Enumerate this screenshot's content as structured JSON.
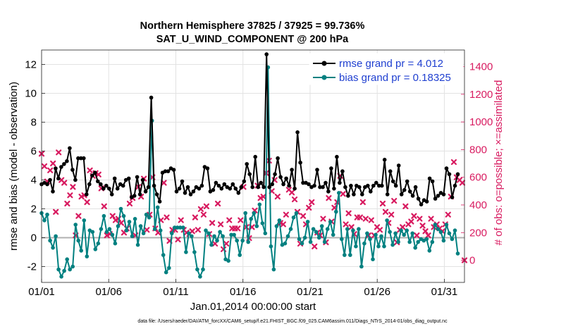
{
  "chart_data": {
    "type": "line",
    "title": "Northern Hemisphere 37825 / 37925 = 99.736%",
    "subtitle": "SAT_U_WIND_COMPONENT @ 200 hPa",
    "xlabel": "Jan.01,2014 00:00:00 start",
    "ylabel": "rmse and bias (model - observation)",
    "y2label": "# of obs: o=possible; ×=assimilated",
    "footer": "data file: /Users/raeder/DAI/ATM_forcXX/CAM6_setup/f.e21.FHIST_BGC.f09_025.CAM6assim.011/Diags_NTrS_2014-01/obs_diag_output.nc",
    "xlim": [
      0,
      31.5
    ],
    "ylim": [
      -3.1,
      13
    ],
    "y2lim": [
      -160,
      1520
    ],
    "x_ticks": [
      0,
      5,
      10,
      15,
      20,
      25,
      30
    ],
    "x_tick_labels": [
      "01/01",
      "01/06",
      "01/11",
      "01/16",
      "01/21",
      "01/26",
      "01/31"
    ],
    "y_ticks": [
      -2,
      0,
      2,
      4,
      6,
      8,
      10,
      12
    ],
    "y_tick_labels": [
      "-2",
      "0",
      "2",
      "4",
      "6",
      "8",
      "10",
      "12"
    ],
    "y2_ticks": [
      0,
      200,
      400,
      600,
      800,
      1000,
      1200,
      1400
    ],
    "y2_tick_labels": [
      "0",
      "200",
      "400",
      "600",
      "800",
      "1000",
      "1200",
      "1400"
    ],
    "grid": true,
    "legend_position": "top-right",
    "colors": {
      "rmse": "#000000",
      "bias": "#008080",
      "obs": "#d81b60",
      "zero": "#b0b0b0",
      "legend_text": "#1f3fd0"
    },
    "series": [
      {
        "name": "rmse grand pr = 4.012",
        "axis": "left",
        "values": [
          3.7,
          3.8,
          3.7,
          4.0,
          3.2,
          4.8,
          4.1,
          4.9,
          5.1,
          5.3,
          6.2,
          4.7,
          4.0,
          5.5,
          5.5,
          5.5,
          3.0,
          3.7,
          4.3,
          4.5,
          3.9,
          3.7,
          3.4,
          3.6,
          3.4,
          3.0,
          4.1,
          3.4,
          3.7,
          3.6,
          4.0,
          4.1,
          2.8,
          2.9,
          4.2,
          3.0,
          4.0,
          3.2,
          3.5,
          9.7,
          3.6,
          3.0,
          2.5,
          4.5,
          4.6,
          4.6,
          4.8,
          4.7,
          3.2,
          3.4,
          3.9,
          3.1,
          3.5,
          3.0,
          3.2,
          3.5,
          3.4,
          3.6,
          4.9,
          4.8,
          3.2,
          3.3,
          3.8,
          3.6,
          3.4,
          3.7,
          3.5,
          3.4,
          3.7,
          3.4,
          3.1,
          3.5,
          3.9,
          5.1,
          4.4,
          3.5,
          5.6,
          3.5,
          3.8,
          3.5,
          12.7,
          3.5,
          3.7,
          4.4,
          5.5,
          4.2,
          3.7,
          4.1,
          3.6,
          4.7,
          3.4,
          7.3,
          5.2,
          3.8,
          3.8,
          3.7,
          3.5,
          3.6,
          4.7,
          3.5,
          3.5,
          3.8,
          3.2,
          4.8,
          3.4,
          5.6,
          3.8,
          4.6,
          3.5,
          2.9,
          3.6,
          3.0,
          3.6,
          3.5,
          3.0,
          3.5,
          3.6,
          3.2,
          3.6,
          3.8,
          3.6,
          3.6,
          5.4,
          3.0,
          4.6,
          3.9,
          3.6,
          5.0,
          3.0,
          3.3,
          3.9,
          3.2,
          2.9,
          3.5,
          2.7,
          2.3,
          2.6,
          2.5,
          4.1,
          3.9,
          2.7,
          2.9,
          3.1,
          3.0,
          4.8,
          4.4,
          2.8,
          3.6,
          4.4
        ],
        "possible": [],
        "assimilated": []
      },
      {
        "name": "bias grand pr = 0.18325",
        "axis": "left",
        "values": [
          1.7,
          1.2,
          1.6,
          -0.2,
          -0.7,
          0.1,
          -2.2,
          -2.7,
          -2.3,
          -1.5,
          -2.2,
          -2.0,
          0.9,
          -0.2,
          -0.9,
          1.2,
          -1.3,
          0.5,
          0.4,
          -0.8,
          -0.4,
          0.6,
          1.5,
          0.4,
          0.6,
          0.2,
          -0.4,
          0.8,
          2.0,
          1.5,
          0.5,
          1.1,
          0.1,
          1.3,
          -0.5,
          0.8,
          0.3,
          1.6,
          1.4,
          8.1,
          0.6,
          2.1,
          0.5,
          -1.2,
          -2.4,
          -2.1,
          0.3,
          0.7,
          0.7,
          0.7,
          0.7,
          -1.0,
          0.3,
          0.1,
          -1.0,
          -2.2,
          -2.7,
          -2.2,
          0.5,
          0.3,
          -0.5,
          0.1,
          -0.2,
          0.4,
          0.1,
          -1.5,
          -1.6,
          0.2,
          0.2,
          -0.2,
          -1.2,
          -0.2,
          1.7,
          -0.3,
          1.3,
          1.7,
          0.8,
          2.3,
          1.0,
          0.3,
          11.8,
          -0.6,
          -2.2,
          0.8,
          1.2,
          -0.5,
          -0.4,
          0.1,
          0.6,
          1.4,
          1.7,
          -0.1,
          -0.4,
          0.0,
          1.1,
          -0.3,
          0.6,
          0.4,
          0.0,
          0.8,
          -0.3,
          0.6,
          1.1,
          0.2,
          1.8,
          3.1,
          -0.1,
          -1.2,
          0.6,
          -1.2,
          0.5,
          -0.6,
          0.6,
          -2.0,
          -0.4,
          0.3,
          -0.1,
          -1.5,
          0.2,
          -0.6,
          0.1,
          -0.6,
          1.2,
          0.4,
          -0.5,
          0.3,
          -0.3,
          0.5,
          0.2,
          0.5,
          -0.3,
          0.3,
          -0.7,
          -0.3,
          -0.1,
          -0.2,
          -0.1,
          -0.9,
          -0.3,
          0.9,
          0.6,
          0.4,
          -0.2,
          0.9,
          0.3,
          -0.1,
          0.5,
          -1.1
        ],
        "possible": [],
        "assimilated": []
      },
      {
        "name": "assimilated observations",
        "axis": "right",
        "values": [
          770,
          680,
          570,
          650,
          700,
          350,
          780,
          580,
          560,
          410,
          470,
          530,
          180,
          320,
          460,
          470,
          420,
          650,
          610,
          630,
          620,
          520,
          390,
          180,
          190,
          320,
          290,
          300,
          270,
          200,
          230,
          410,
          450,
          180,
          530,
          460,
          590,
          220,
          330,
          600,
          230,
          200,
          290,
          560,
          310,
          140,
          220,
          220,
          150,
          290,
          220,
          200,
          190,
          210,
          310,
          220,
          370,
          330,
          390,
          190,
          270,
          120,
          410,
          260,
          80,
          120,
          290,
          230,
          230,
          230,
          290,
          530,
          240,
          160,
          240,
          360,
          540,
          450,
          460,
          630,
          720,
          500,
          580,
          460,
          270,
          260,
          330,
          510,
          490,
          440,
          350,
          120,
          320,
          260,
          380,
          420,
          100,
          200,
          180,
          300,
          130,
          450,
          280,
          380,
          420,
          610,
          480,
          260,
          340,
          240,
          190,
          310,
          310,
          420,
          300,
          180,
          290,
          180,
          240,
          220,
          410,
          350,
          270,
          330,
          430,
          130,
          220,
          240,
          390,
          260,
          280,
          320,
          180,
          300,
          250,
          210,
          180,
          300,
          240,
          260,
          230,
          210,
          260,
          330,
          460,
          710,
          600,
          580,
          560,
          0
        ]
      }
    ],
    "assim_x": [
      0.0,
      0.21,
      0.42,
      0.64,
      0.85,
      1.06,
      1.27,
      1.48,
      1.69,
      1.91,
      2.12,
      2.33,
      2.54,
      2.75,
      2.97,
      3.18,
      3.39,
      3.6,
      3.81,
      4.02,
      4.24,
      4.45,
      4.66,
      4.87,
      5.08,
      5.29,
      5.51,
      5.72,
      5.93,
      6.14,
      6.35,
      6.56,
      6.78,
      6.99,
      7.2,
      7.41,
      7.62,
      7.84,
      8.05,
      8.26,
      8.47,
      8.68,
      8.89,
      9.11,
      9.32,
      9.53,
      9.74,
      9.95,
      10.16,
      10.38,
      10.59,
      10.8,
      11.01,
      11.22,
      11.44,
      11.65,
      11.86,
      12.07,
      12.28,
      12.49,
      12.71,
      12.92,
      13.13,
      13.34,
      13.55,
      13.76,
      13.98,
      14.19,
      14.4,
      14.61,
      14.82,
      15.04,
      15.25,
      15.46,
      15.67,
      15.88,
      16.09,
      16.31,
      16.52,
      16.73,
      16.94,
      17.15,
      17.36,
      17.58,
      17.79,
      18.0,
      18.21,
      18.42,
      18.64,
      18.85,
      19.06,
      19.27,
      19.48,
      19.69,
      19.91,
      20.12,
      20.33,
      20.54,
      20.75,
      20.97,
      21.18,
      21.39,
      21.6,
      21.81,
      22.02,
      22.24,
      22.45,
      22.66,
      22.87,
      23.08,
      23.29,
      23.51,
      23.72,
      23.93,
      24.14,
      24.35,
      24.56,
      24.78,
      24.99,
      25.2,
      25.41,
      25.62,
      25.84,
      26.05,
      26.26,
      26.47,
      26.68,
      26.89,
      27.11,
      27.32,
      27.53,
      27.74,
      27.95,
      28.16,
      28.38,
      28.59,
      28.8,
      29.01,
      29.22,
      29.44,
      29.65,
      29.86,
      30.07,
      30.28,
      30.49,
      30.71,
      30.92,
      31.13,
      31.34,
      31.5
    ]
  }
}
